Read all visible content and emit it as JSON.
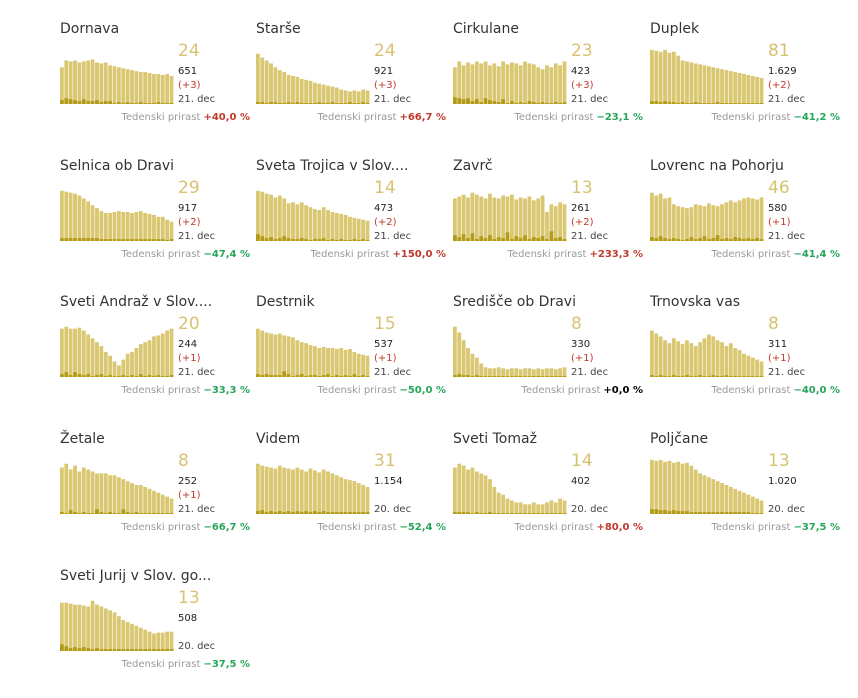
{
  "growth_label": "Tedenski prirast",
  "colors": {
    "bar": "#d9c772",
    "bar_dark": "#b39b17",
    "highlight": "#d8c272",
    "positive": "#c0392b",
    "negative": "#27a55a",
    "neutral": "#000000"
  },
  "chart_data": [
    {
      "type": "bar",
      "title": "Dornava",
      "active": 24,
      "total": "651",
      "delta": "(+3)",
      "date": "21. dec",
      "growth": "+40,0 %",
      "trend": "up",
      "values": [
        38,
        45,
        44,
        45,
        43,
        44,
        45,
        46,
        43,
        42,
        43,
        40,
        39,
        38,
        37,
        36,
        35,
        34,
        33,
        33,
        32,
        31,
        31,
        30,
        31,
        29
      ],
      "dark_values": [
        4,
        6,
        5,
        4,
        3,
        5,
        3,
        3,
        4,
        2,
        3,
        3,
        1,
        2,
        1,
        2,
        1,
        1,
        2,
        1,
        1,
        1,
        2,
        1,
        1,
        1
      ]
    },
    {
      "type": "bar",
      "title": "Starše",
      "active": 24,
      "total": "921",
      "delta": "(+3)",
      "date": "21. dec",
      "growth": "+66,7 %",
      "trend": "up",
      "values": [
        52,
        48,
        45,
        42,
        38,
        35,
        33,
        30,
        29,
        28,
        26,
        25,
        24,
        22,
        21,
        20,
        19,
        18,
        17,
        15,
        14,
        13,
        14,
        13,
        15,
        14
      ],
      "dark_values": [
        2,
        2,
        1,
        2,
        2,
        1,
        1,
        2,
        1,
        2,
        1,
        1,
        1,
        1,
        2,
        1,
        1,
        2,
        1,
        1,
        1,
        2,
        1,
        1,
        2,
        1
      ]
    },
    {
      "type": "bar",
      "title": "Cirkulane",
      "active": 23,
      "total": "423",
      "delta": "(+3)",
      "date": "21. dec",
      "growth": "−23,1 %",
      "trend": "down",
      "values": [
        38,
        44,
        40,
        43,
        41,
        44,
        42,
        44,
        40,
        42,
        39,
        44,
        41,
        43,
        42,
        40,
        44,
        42,
        41,
        38,
        36,
        40,
        38,
        42,
        40,
        44
      ],
      "dark_values": [
        7,
        6,
        5,
        6,
        3,
        5,
        2,
        6,
        4,
        3,
        2,
        5,
        1,
        3,
        1,
        2,
        1,
        3,
        2,
        1,
        2,
        1,
        1,
        2,
        1,
        2
      ]
    },
    {
      "type": "bar",
      "title": "Duplek",
      "active": 81,
      "total": "1.629",
      "delta": "(+2)",
      "date": "21. dec",
      "growth": "−41,2 %",
      "trend": "down",
      "values": [
        56,
        55,
        54,
        56,
        53,
        54,
        50,
        45,
        44,
        43,
        42,
        41,
        40,
        39,
        38,
        37,
        36,
        35,
        34,
        33,
        32,
        31,
        30,
        29,
        28,
        27
      ],
      "dark_values": [
        3,
        3,
        2,
        3,
        2,
        2,
        1,
        2,
        1,
        1,
        2,
        1,
        1,
        1,
        1,
        2,
        1,
        1,
        1,
        1,
        1,
        1,
        1,
        1,
        1,
        1
      ]
    },
    {
      "type": "bar",
      "title": "Selnica ob Dravi",
      "active": 29,
      "total": "917",
      "delta": "(+2)",
      "date": "21. dec",
      "growth": "−47,4 %",
      "trend": "down",
      "values": [
        52,
        51,
        50,
        49,
        47,
        44,
        41,
        37,
        34,
        31,
        29,
        29,
        30,
        31,
        30,
        30,
        29,
        30,
        31,
        29,
        28,
        27,
        25,
        25,
        22,
        20
      ],
      "dark_values": [
        3,
        3,
        3,
        3,
        3,
        3,
        3,
        3,
        3,
        2,
        2,
        2,
        2,
        2,
        2,
        2,
        2,
        2,
        2,
        2,
        2,
        2,
        2,
        2,
        1,
        2
      ]
    },
    {
      "type": "bar",
      "title": "Sveta Trojica v Slov....",
      "active": 14,
      "total": "473",
      "delta": "(+2)",
      "date": "21. dec",
      "growth": "+150,0 %",
      "trend": "up",
      "values": [
        52,
        51,
        49,
        48,
        45,
        47,
        44,
        39,
        40,
        38,
        40,
        37,
        35,
        33,
        32,
        35,
        32,
        30,
        29,
        28,
        27,
        25,
        24,
        23,
        22,
        21
      ],
      "dark_values": [
        7,
        5,
        3,
        4,
        2,
        3,
        5,
        3,
        2,
        2,
        3,
        2,
        1,
        2,
        2,
        3,
        1,
        2,
        1,
        2,
        1,
        1,
        2,
        1,
        2,
        1
      ]
    },
    {
      "type": "bar",
      "title": "Zavrč",
      "active": 13,
      "total": "261",
      "delta": "(+2)",
      "date": "21. dec",
      "growth": "+233,3 %",
      "trend": "up",
      "values": [
        44,
        46,
        48,
        45,
        50,
        48,
        46,
        44,
        49,
        45,
        44,
        47,
        46,
        48,
        43,
        45,
        44,
        46,
        42,
        44,
        47,
        30,
        38,
        36,
        40,
        38
      ],
      "dark_values": [
        6,
        4,
        7,
        3,
        8,
        2,
        5,
        3,
        6,
        2,
        4,
        3,
        9,
        2,
        5,
        3,
        6,
        2,
        4,
        3,
        5,
        2,
        10,
        3,
        4,
        2
      ]
    },
    {
      "type": "bar",
      "title": "Lovrenc na Pohorju",
      "active": 46,
      "total": "580",
      "delta": "(+1)",
      "date": "21. dec",
      "growth": "−41,4 %",
      "trend": "down",
      "values": [
        50,
        47,
        49,
        44,
        45,
        38,
        36,
        35,
        34,
        35,
        38,
        37,
        36,
        39,
        37,
        36,
        38,
        40,
        42,
        40,
        42,
        44,
        45,
        44,
        43,
        45
      ],
      "dark_values": [
        4,
        3,
        5,
        3,
        2,
        3,
        2,
        1,
        2,
        4,
        2,
        3,
        5,
        2,
        3,
        6,
        2,
        3,
        2,
        4,
        3,
        2,
        3,
        2,
        3,
        2
      ]
    },
    {
      "type": "bar",
      "title": "Sveti Andraž v Slov....",
      "active": 20,
      "total": "244",
      "delta": "(+1)",
      "date": "21. dec",
      "growth": "−33,3 %",
      "trend": "down",
      "values": [
        50,
        52,
        50,
        50,
        51,
        48,
        44,
        40,
        36,
        32,
        26,
        22,
        16,
        12,
        18,
        24,
        26,
        30,
        34,
        36,
        38,
        42,
        43,
        45,
        48,
        50
      ],
      "dark_values": [
        3,
        5,
        2,
        5,
        3,
        2,
        3,
        1,
        2,
        3,
        1,
        2,
        1,
        1,
        2,
        1,
        2,
        1,
        3,
        1,
        2,
        1,
        2,
        1,
        1,
        2
      ]
    },
    {
      "type": "bar",
      "title": "Destrnik",
      "active": 15,
      "total": "537",
      "delta": "(+1)",
      "date": "21. dec",
      "growth": "−50,0 %",
      "trend": "down",
      "values": [
        50,
        48,
        46,
        45,
        44,
        45,
        43,
        42,
        41,
        38,
        36,
        35,
        33,
        32,
        30,
        31,
        30,
        30,
        29,
        30,
        28,
        29,
        26,
        24,
        23,
        22
      ],
      "dark_values": [
        3,
        2,
        3,
        2,
        2,
        2,
        6,
        3,
        1,
        2,
        3,
        1,
        2,
        2,
        1,
        2,
        3,
        1,
        2,
        1,
        2,
        1,
        3,
        1,
        2,
        1
      ]
    },
    {
      "type": "bar",
      "title": "Središče ob Dravi",
      "active": 8,
      "total": "330",
      "delta": "(+1)",
      "date": "21. dec",
      "growth": "+0,0 %",
      "trend": "neutral",
      "values": [
        52,
        46,
        38,
        30,
        24,
        20,
        14,
        10,
        9,
        9,
        10,
        9,
        8,
        9,
        9,
        8,
        9,
        9,
        8,
        9,
        8,
        9,
        9,
        8,
        9,
        10
      ],
      "dark_values": [
        2,
        3,
        2,
        2,
        1,
        2,
        1,
        1,
        1,
        1,
        1,
        1,
        1,
        1,
        1,
        1,
        1,
        1,
        1,
        1,
        1,
        1,
        1,
        1,
        1,
        1
      ]
    },
    {
      "type": "bar",
      "title": "Trnovska vas",
      "active": 8,
      "total": "311",
      "delta": "(+1)",
      "date": "21. dec",
      "growth": "−40,0 %",
      "trend": "down",
      "values": [
        48,
        45,
        42,
        38,
        35,
        40,
        37,
        34,
        38,
        35,
        32,
        36,
        40,
        44,
        42,
        38,
        36,
        32,
        35,
        30,
        28,
        24,
        22,
        20,
        18,
        16
      ],
      "dark_values": [
        2,
        1,
        2,
        1,
        1,
        2,
        1,
        1,
        2,
        1,
        1,
        2,
        1,
        1,
        2,
        1,
        1,
        2,
        1,
        1,
        1,
        1,
        1,
        1,
        1,
        1
      ]
    },
    {
      "type": "bar",
      "title": "Žetale",
      "active": 8,
      "total": "252",
      "delta": "(+1)",
      "date": "21. dec",
      "growth": "−66,7 %",
      "trend": "down",
      "values": [
        48,
        52,
        46,
        50,
        44,
        48,
        46,
        44,
        42,
        42,
        42,
        40,
        40,
        38,
        36,
        34,
        32,
        30,
        30,
        28,
        26,
        24,
        22,
        20,
        18,
        16
      ],
      "dark_values": [
        2,
        1,
        4,
        2,
        1,
        2,
        1,
        1,
        5,
        2,
        1,
        2,
        1,
        1,
        5,
        2,
        1,
        2,
        1,
        1,
        1,
        1,
        1,
        1,
        1,
        1
      ]
    },
    {
      "type": "bar",
      "title": "Videm",
      "active": 31,
      "total": "1.154",
      "delta": "",
      "date": "20. dec",
      "growth": "−52,4 %",
      "trend": "down",
      "values": [
        52,
        50,
        49,
        48,
        47,
        50,
        48,
        47,
        46,
        48,
        46,
        44,
        47,
        45,
        43,
        46,
        44,
        42,
        40,
        38,
        36,
        35,
        34,
        32,
        30,
        28
      ],
      "dark_values": [
        3,
        4,
        2,
        3,
        2,
        3,
        2,
        3,
        2,
        3,
        2,
        3,
        2,
        3,
        2,
        3,
        2,
        2,
        2,
        2,
        2,
        2,
        2,
        2,
        2,
        2
      ]
    },
    {
      "type": "bar",
      "title": "Sveti Tomaž",
      "active": 14,
      "total": "402",
      "delta": "",
      "date": "20. dec",
      "growth": "+80,0 %",
      "trend": "up",
      "values": [
        48,
        52,
        50,
        46,
        48,
        44,
        42,
        40,
        36,
        28,
        22,
        20,
        16,
        14,
        12,
        12,
        10,
        10,
        12,
        10,
        10,
        12,
        14,
        12,
        16,
        14
      ],
      "dark_values": [
        2,
        2,
        2,
        2,
        1,
        2,
        1,
        1,
        2,
        1,
        1,
        1,
        1,
        1,
        1,
        1,
        1,
        1,
        1,
        1,
        1,
        1,
        1,
        1,
        1,
        1
      ]
    },
    {
      "type": "bar",
      "title": "Poljčane",
      "active": 13,
      "total": "1.020",
      "delta": "",
      "date": "20. dec",
      "growth": "−37,5 %",
      "trend": "down",
      "values": [
        56,
        55,
        56,
        54,
        55,
        53,
        54,
        52,
        53,
        50,
        46,
        42,
        40,
        38,
        36,
        34,
        32,
        30,
        28,
        26,
        24,
        22,
        20,
        18,
        16,
        14
      ],
      "dark_values": [
        5,
        5,
        4,
        4,
        3,
        4,
        3,
        3,
        3,
        2,
        2,
        2,
        2,
        2,
        2,
        2,
        2,
        2,
        2,
        2,
        2,
        2,
        2,
        1,
        1,
        1
      ]
    },
    {
      "type": "bar",
      "title": "Sveti Jurij v Slov. go...",
      "active": 13,
      "total": "508",
      "delta": "",
      "date": "20. dec",
      "growth": "−37,5 %",
      "trend": "down",
      "values": [
        50,
        50,
        49,
        48,
        48,
        47,
        46,
        52,
        48,
        46,
        44,
        42,
        40,
        36,
        32,
        30,
        28,
        26,
        24,
        22,
        20,
        18,
        19,
        19,
        20,
        20
      ],
      "dark_values": [
        7,
        5,
        3,
        4,
        3,
        4,
        3,
        2,
        3,
        2,
        2,
        2,
        2,
        2,
        2,
        2,
        2,
        2,
        2,
        2,
        2,
        2,
        2,
        2,
        2,
        2
      ]
    }
  ]
}
